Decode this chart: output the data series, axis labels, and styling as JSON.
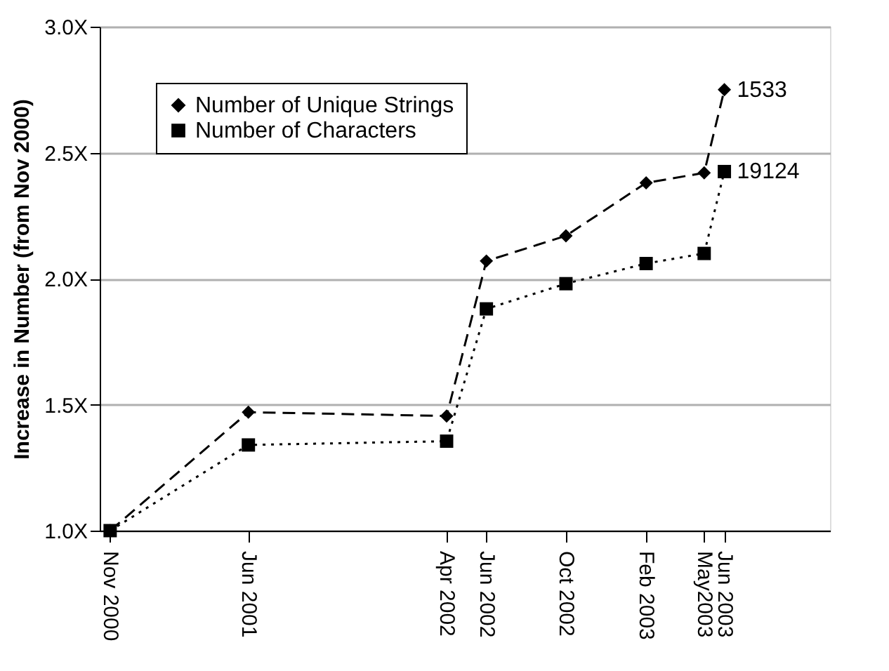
{
  "chart_data": {
    "type": "line",
    "ylabel": "Increase in Number (from Nov 2000)",
    "x": [
      "2000-11",
      "2001-06",
      "2002-04",
      "2002-06",
      "2002-10",
      "2003-02",
      "2003-05",
      "2003-06"
    ],
    "series": [
      {
        "name": "Number of Unique Strings",
        "color": "#000000",
        "marker": "diamond",
        "line_style": "dashed",
        "values": [
          1.0,
          1.47,
          1.455,
          2.07,
          2.17,
          2.38,
          2.42,
          2.75
        ]
      },
      {
        "name": "Number of Characters",
        "color": "#000000",
        "marker": "square",
        "line_style": "dotted",
        "values": [
          1.0,
          1.34,
          1.355,
          1.88,
          1.98,
          2.06,
          2.1,
          2.425
        ]
      }
    ],
    "xlim": [
      "2000-10-16",
      "2003-11-10"
    ],
    "xticks": [
      {
        "value": "2000-11",
        "label": "Nov 2000"
      },
      {
        "value": "2001-06",
        "label": "Jun 2001"
      },
      {
        "value": "2002-04",
        "label": "Apr 2002"
      },
      {
        "value": "2002-06",
        "label": "Jun 2002"
      },
      {
        "value": "2002-10",
        "label": "Oct  2002"
      },
      {
        "value": "2003-02",
        "label": "Feb 2003"
      },
      {
        "value": "2003-05",
        "label": "May2003"
      },
      {
        "value": "2003-06",
        "label": "Jun 2003"
      }
    ],
    "ylim": [
      1.0,
      3.0
    ],
    "yticks": [
      {
        "value": 1.0,
        "label": "1.0X"
      },
      {
        "value": 1.5,
        "label": "1.5X"
      },
      {
        "value": 2.0,
        "label": "2.0X"
      },
      {
        "value": 2.5,
        "label": "2.5X"
      },
      {
        "value": 3.0,
        "label": "3.0X"
      }
    ],
    "annotations": [
      {
        "text": "1533",
        "x": "2003-06",
        "y": 2.75
      },
      {
        "text": "19124",
        "x": "2003-06",
        "y": 2.425
      }
    ],
    "grid": "y",
    "legend": "top left"
  }
}
